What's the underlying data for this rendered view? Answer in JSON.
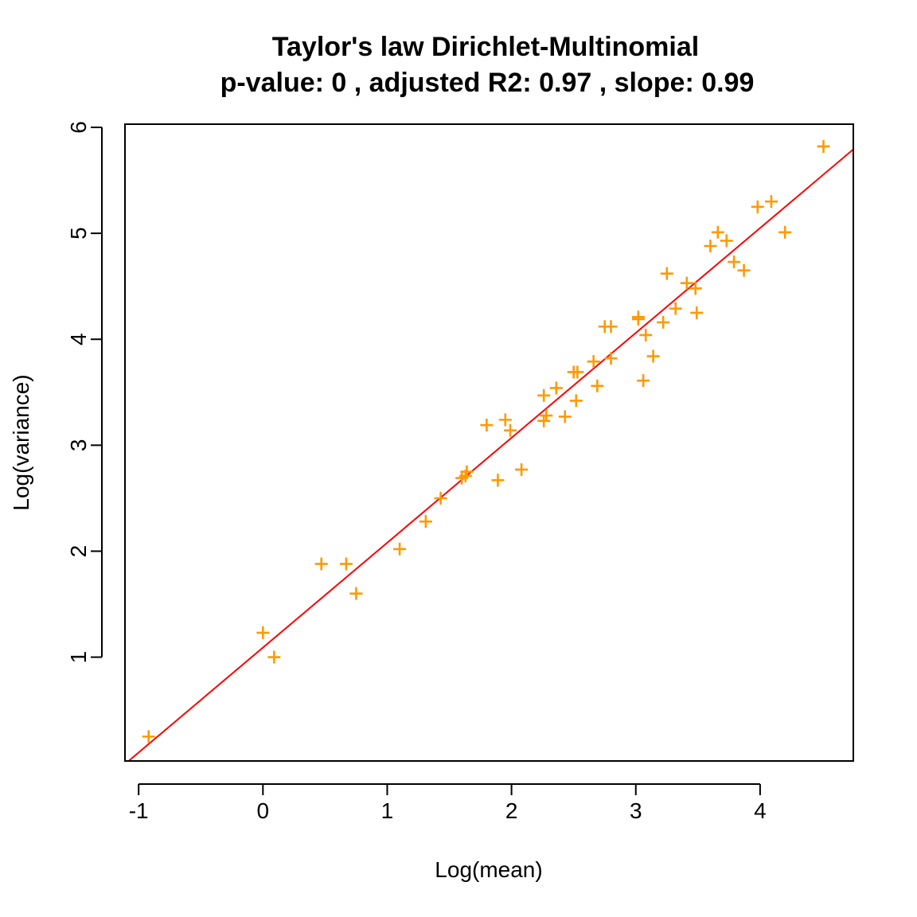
{
  "chart_data": {
    "type": "scatter",
    "title": "Taylor's law Dirichlet-Multinomial",
    "subtitle": "p-value: 0 , adjusted R2: 0.97 , slope: 0.99",
    "xlabel": "Log(mean)",
    "ylabel": "Log(variance)",
    "xlim": [
      -1.11,
      4.75
    ],
    "ylim": [
      0.02,
      6.03
    ],
    "x_ticks": [
      "-1",
      "0",
      "1",
      "2",
      "3",
      "4"
    ],
    "y_ticks": [
      "1",
      "2",
      "3",
      "4",
      "5",
      "6"
    ],
    "grid": false,
    "legend": "none",
    "point_color": "#FF9900",
    "line_color": "#FF0000",
    "points": {
      "x": [
        -0.92,
        0.0,
        0.09,
        0.47,
        0.67,
        0.75,
        1.1,
        1.31,
        1.43,
        1.6,
        1.63,
        1.64,
        1.8,
        1.89,
        1.95,
        1.99,
        2.08,
        2.26,
        2.26,
        2.28,
        2.36,
        2.43,
        2.5,
        2.52,
        2.53,
        2.66,
        2.69,
        2.75,
        2.8,
        2.8,
        3.02,
        3.02,
        3.06,
        3.08,
        3.14,
        3.22,
        3.25,
        3.32,
        3.41,
        3.48,
        3.49,
        3.6,
        3.66,
        3.73,
        3.79,
        3.87,
        3.98,
        4.09,
        4.2,
        4.51
      ],
      "y": [
        0.25,
        1.23,
        1.0,
        1.88,
        1.88,
        1.6,
        2.02,
        2.28,
        2.5,
        2.69,
        2.71,
        2.75,
        3.19,
        2.67,
        3.24,
        3.14,
        2.77,
        3.23,
        3.47,
        3.28,
        3.54,
        3.27,
        3.69,
        3.42,
        3.69,
        3.79,
        3.56,
        4.12,
        3.82,
        4.12,
        4.19,
        4.21,
        3.61,
        4.04,
        3.84,
        4.16,
        4.62,
        4.29,
        4.53,
        4.48,
        4.25,
        4.88,
        5.01,
        4.93,
        4.73,
        4.65,
        5.25,
        5.3,
        5.01,
        5.82
      ]
    },
    "fit_line": {
      "slope": 0.99,
      "intercept": 1.09
    }
  }
}
